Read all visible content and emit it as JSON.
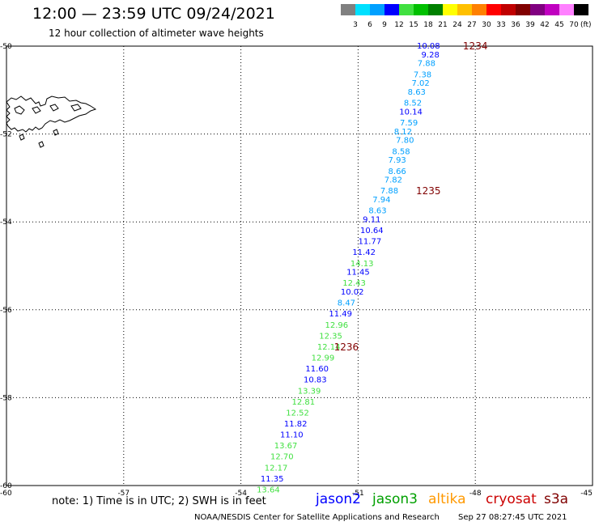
{
  "header": {
    "title": "12:00 — 23:59 UTC 09/24/2021",
    "subtitle": "12 hour collection of altimeter wave heights"
  },
  "colorbar": {
    "colors": [
      "#808080",
      "#00e0ff",
      "#00a0ff",
      "#0000ff",
      "#40e040",
      "#00c000",
      "#008000",
      "#ffff00",
      "#ffc000",
      "#ff8000",
      "#ff0000",
      "#c00000",
      "#800000",
      "#800080",
      "#c000c0",
      "#ff80ff",
      "#000000"
    ],
    "labels": [
      "3",
      "6",
      "9",
      "12",
      "15",
      "18",
      "21",
      "24",
      "27",
      "30",
      "33",
      "36",
      "39",
      "42",
      "45",
      "70"
    ],
    "unit": "(ft)"
  },
  "axes": {
    "lon_ticks": [
      "-60",
      "-57",
      "-54",
      "-51",
      "-48",
      "-45"
    ],
    "lat_ticks": [
      "-50",
      "-52",
      "-54",
      "-56",
      "-58",
      "-60"
    ]
  },
  "chart_data": {
    "type": "scatter",
    "x_range": [
      -60,
      -45
    ],
    "y_range": [
      -60,
      -50
    ],
    "grid": true,
    "wave_heights": [
      {
        "lon": -49.2,
        "lat": -50.0,
        "value": "10.08",
        "color": "#0000ff"
      },
      {
        "lon": -49.15,
        "lat": -50.2,
        "value": "9.28",
        "color": "#0000ff"
      },
      {
        "lon": -49.25,
        "lat": -50.4,
        "value": "7.88",
        "color": "#00a0ff"
      },
      {
        "lon": -49.35,
        "lat": -50.65,
        "value": "7.38",
        "color": "#00a0ff"
      },
      {
        "lon": -49.4,
        "lat": -50.85,
        "value": "7.02",
        "color": "#00a0ff"
      },
      {
        "lon": -49.5,
        "lat": -51.05,
        "value": "8.63",
        "color": "#00a0ff"
      },
      {
        "lon": -49.6,
        "lat": -51.3,
        "value": "8.52",
        "color": "#00a0ff"
      },
      {
        "lon": -49.65,
        "lat": -51.5,
        "value": "10.14",
        "color": "#0000ff"
      },
      {
        "lon": -49.7,
        "lat": -51.75,
        "value": "7.59",
        "color": "#00a0ff"
      },
      {
        "lon": -49.85,
        "lat": -51.95,
        "value": "8.12",
        "color": "#00a0ff"
      },
      {
        "lon": -49.8,
        "lat": -52.15,
        "value": "7.80",
        "color": "#00a0ff"
      },
      {
        "lon": -49.9,
        "lat": -52.4,
        "value": "8.58",
        "color": "#00a0ff"
      },
      {
        "lon": -50.0,
        "lat": -52.6,
        "value": "7.93",
        "color": "#00a0ff"
      },
      {
        "lon": -50.0,
        "lat": -52.85,
        "value": "8.66",
        "color": "#00a0ff"
      },
      {
        "lon": -50.1,
        "lat": -53.05,
        "value": "7.82",
        "color": "#00a0ff"
      },
      {
        "lon": -50.2,
        "lat": -53.3,
        "value": "7.88",
        "color": "#00a0ff"
      },
      {
        "lon": -50.4,
        "lat": -53.5,
        "value": "7.94",
        "color": "#00a0ff"
      },
      {
        "lon": -50.5,
        "lat": -53.75,
        "value": "8.63",
        "color": "#00a0ff"
      },
      {
        "lon": -50.65,
        "lat": -53.95,
        "value": "9.11",
        "color": "#0000ff"
      },
      {
        "lon": -50.65,
        "lat": -54.2,
        "value": "10.64",
        "color": "#0000ff"
      },
      {
        "lon": -50.7,
        "lat": -54.45,
        "value": "11.77",
        "color": "#0000ff"
      },
      {
        "lon": -50.85,
        "lat": -54.7,
        "value": "11.42",
        "color": "#0000ff"
      },
      {
        "lon": -50.9,
        "lat": -54.95,
        "value": "14.13",
        "color": "#40e040"
      },
      {
        "lon": -51.0,
        "lat": -55.15,
        "value": "11.45",
        "color": "#0000ff"
      },
      {
        "lon": -51.1,
        "lat": -55.4,
        "value": "12.43",
        "color": "#40e040"
      },
      {
        "lon": -51.15,
        "lat": -55.6,
        "value": "10.02",
        "color": "#0000ff"
      },
      {
        "lon": -51.3,
        "lat": -55.85,
        "value": "8.47",
        "color": "#00a0ff"
      },
      {
        "lon": -51.45,
        "lat": -56.1,
        "value": "11.49",
        "color": "#0000ff"
      },
      {
        "lon": -51.55,
        "lat": -56.35,
        "value": "12.96",
        "color": "#40e040"
      },
      {
        "lon": -51.7,
        "lat": -56.6,
        "value": "12.35",
        "color": "#40e040"
      },
      {
        "lon": -51.75,
        "lat": -56.85,
        "value": "12.14",
        "color": "#40e040"
      },
      {
        "lon": -51.9,
        "lat": -57.1,
        "value": "12.99",
        "color": "#40e040"
      },
      {
        "lon": -52.05,
        "lat": -57.35,
        "value": "11.60",
        "color": "#0000ff"
      },
      {
        "lon": -52.1,
        "lat": -57.6,
        "value": "10.83",
        "color": "#0000ff"
      },
      {
        "lon": -52.25,
        "lat": -57.85,
        "value": "13.39",
        "color": "#40e040"
      },
      {
        "lon": -52.4,
        "lat": -58.1,
        "value": "12.81",
        "color": "#40e040"
      },
      {
        "lon": -52.55,
        "lat": -58.35,
        "value": "12.52",
        "color": "#40e040"
      },
      {
        "lon": -52.6,
        "lat": -58.6,
        "value": "11.82",
        "color": "#0000ff"
      },
      {
        "lon": -52.7,
        "lat": -58.85,
        "value": "11.10",
        "color": "#0000ff"
      },
      {
        "lon": -52.85,
        "lat": -59.1,
        "value": "13.67",
        "color": "#40e040"
      },
      {
        "lon": -52.95,
        "lat": -59.35,
        "value": "12.70",
        "color": "#40e040"
      },
      {
        "lon": -53.1,
        "lat": -59.6,
        "value": "12.17",
        "color": "#40e040"
      },
      {
        "lon": -53.2,
        "lat": -59.85,
        "value": "11.35",
        "color": "#0000ff"
      },
      {
        "lon": -53.3,
        "lat": -60.1,
        "value": "13.64",
        "color": "#40e040"
      }
    ],
    "time_labels": [
      {
        "lon": -48.0,
        "lat": -50.0,
        "value": "1234",
        "color": "#800000"
      },
      {
        "lon": -49.2,
        "lat": -53.3,
        "value": "1235",
        "color": "#800000"
      },
      {
        "lon": -51.3,
        "lat": -56.85,
        "value": "1236",
        "color": "#800000"
      }
    ]
  },
  "footer": {
    "note": "note: 1) Time is in UTC; 2) SWH is in feet",
    "satellites": [
      {
        "name": "jason2",
        "color": "#0000ff"
      },
      {
        "name": "jason3",
        "color": "#00a000"
      },
      {
        "name": "altika",
        "color": "#ff9900"
      },
      {
        "name": "cryosat",
        "color": "#cc0000"
      },
      {
        "name": "s3a",
        "color": "#800000"
      }
    ],
    "credit": "NOAA/NESDIS Center for Satellite Applications and Research",
    "timestamp": "Sep 27 08:27:45 UTC 2021"
  }
}
